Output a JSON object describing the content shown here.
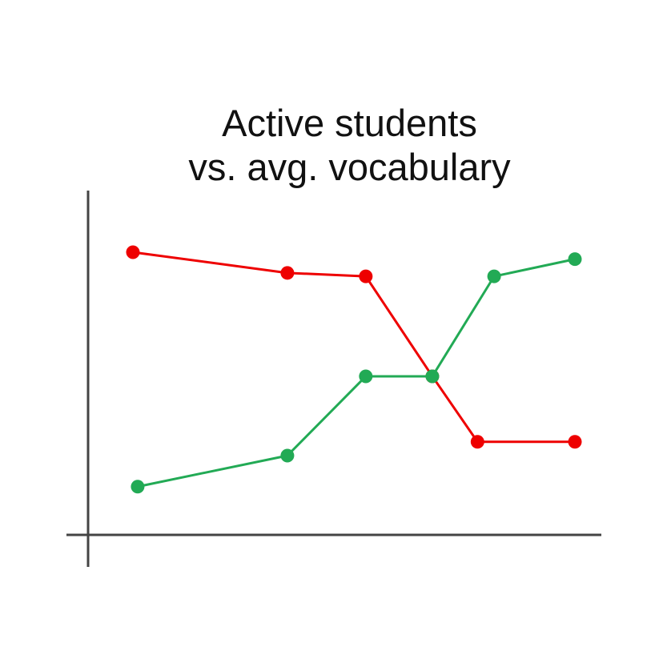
{
  "chart_data": {
    "type": "line",
    "title_lines": [
      "Active students",
      "vs. avg. vocabulary"
    ],
    "xlabel": "",
    "ylabel": "",
    "grid": false,
    "legend": "none",
    "x": [
      0,
      3.25,
      4.9,
      6.3,
      7.25,
      9.3
    ],
    "xlim": [
      -0.9,
      10.2
    ],
    "ylim": [
      0,
      100
    ],
    "series": [
      {
        "color": "#ee0000",
        "x": [
          0,
          3.25,
          4.9,
          6.3,
          7.25,
          9.3
        ],
        "values": [
          82,
          76,
          75,
          46,
          27,
          27
        ]
      },
      {
        "color": "#22aa55",
        "x": [
          0.1,
          3.25,
          4.9,
          6.3,
          7.6,
          9.3
        ],
        "values": [
          14,
          23,
          46,
          46,
          75,
          80
        ]
      }
    ]
  }
}
